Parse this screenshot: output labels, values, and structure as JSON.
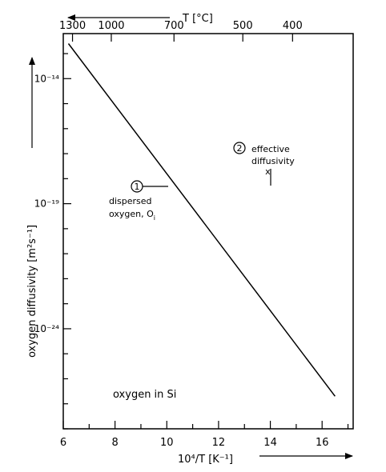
{
  "chart_data": {
    "type": "line",
    "xlabel": "10⁴/T [K⁻¹]",
    "ylabel": "oxygen diffusivity   [m²s⁻¹]",
    "top_axis_label": "T [°C]",
    "xlim": [
      6,
      17.2
    ],
    "x_ticks": [
      6,
      8,
      10,
      12,
      14,
      16
    ],
    "x_tick_labels": [
      "6",
      "8",
      "10",
      "12",
      "14",
      "16"
    ],
    "y_scale": "log",
    "ylim_log10": [
      -28,
      -12.2
    ],
    "y_ticks_log10": [
      -14,
      -19,
      -24
    ],
    "y_tick_labels": [
      "10⁻¹⁴",
      "10⁻¹⁹",
      "10⁻²⁴"
    ],
    "top_ticks_celsius": [
      1300,
      1000,
      700,
      500,
      400
    ],
    "top_tick_labels": [
      "1300",
      "1000",
      "700",
      "500",
      "400"
    ],
    "grid": false,
    "series": [
      {
        "x": [
          6.2,
          16.5
        ],
        "y_log10": [
          -12.6,
          -26.7
        ]
      }
    ],
    "points": [
      {
        "marker": "x",
        "x": 13.9,
        "y_log10": -17.7
      }
    ],
    "annotations": {
      "one_num": "1",
      "one_text": [
        "dispersed",
        "oxygen, O",
        "i"
      ],
      "two_num": "2",
      "two_text": [
        "effective",
        "diffusivity"
      ],
      "x_marker": "x",
      "note": "oxygen in Si"
    }
  }
}
